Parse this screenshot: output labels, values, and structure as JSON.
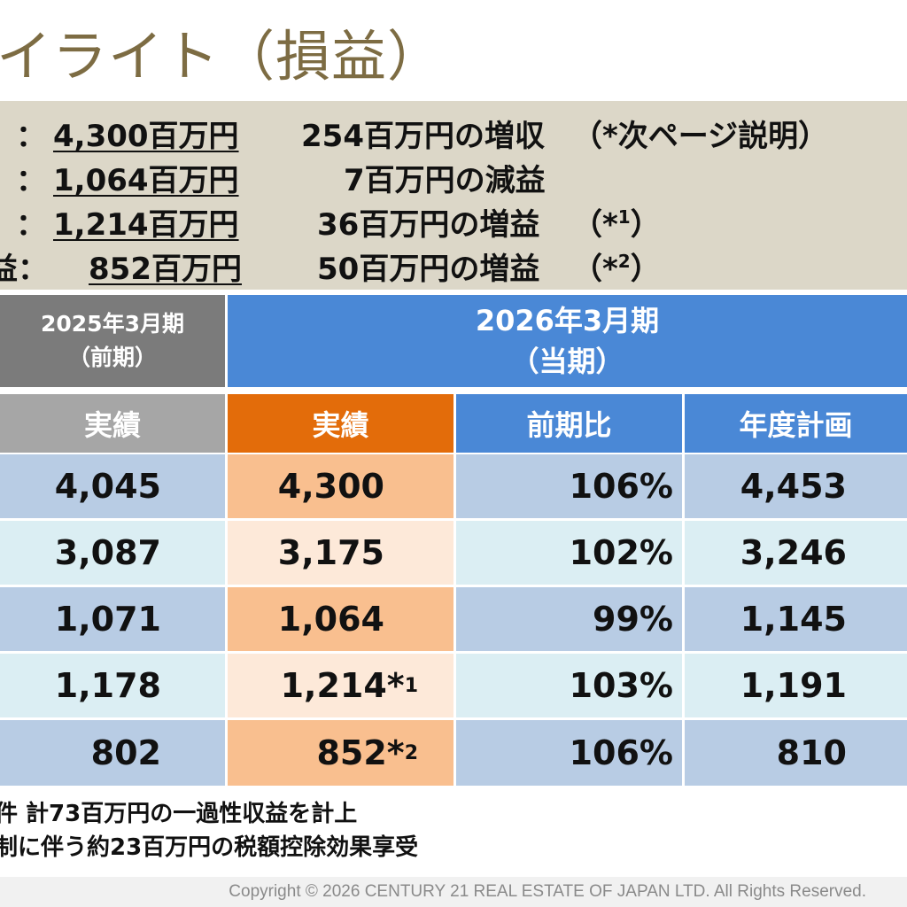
{
  "title": "イライト（損益）",
  "summary": [
    {
      "label": "：",
      "value": "4,300百万円",
      "change": "254百万円の増収",
      "note": "（*次ページ説明）",
      "sup": ""
    },
    {
      "label": "：",
      "value": "1,064百万円",
      "change": "7百万円の減益",
      "note": "",
      "sup": ""
    },
    {
      "label": "：",
      "value": "1,214百万円",
      "change": "36百万円の増益",
      "note": "（*",
      "sup": "1",
      "note_end": "）"
    },
    {
      "label": "益：",
      "value": "852百万円",
      "change": "50百万円の増益",
      "note": "（*",
      "sup": "2",
      "note_end": "）"
    }
  ],
  "table": {
    "prev_header_line1": "2025年3月期",
    "prev_header_line2": "（前期）",
    "cur_header_line1": "2026年3月期",
    "cur_header_line2": "（当期）",
    "subheaders": [
      "実績",
      "実績",
      "前期比",
      "年度計画"
    ],
    "rows": [
      {
        "prev": "4,045",
        "cur": "4,300",
        "cur_sup": "",
        "ratio": "106%",
        "plan": "4,453"
      },
      {
        "prev": "3,087",
        "cur": "3,175",
        "cur_sup": "",
        "ratio": "102%",
        "plan": "3,246"
      },
      {
        "prev": "1,071",
        "cur": "1,064",
        "cur_sup": "",
        "ratio": "99%",
        "plan": "1,145"
      },
      {
        "prev": "1,178",
        "cur": "1,214*",
        "cur_sup": "1",
        "ratio": "103%",
        "plan": "1,191"
      },
      {
        "prev": "802",
        "cur": "852*",
        "cur_sup": "2",
        "ratio": "106%",
        "plan": "810"
      }
    ]
  },
  "footnotes": [
    "件 計73百万円の一過性収益を計上",
    "制に伴う約23百万円の税額控除効果享受"
  ],
  "copyright": "Copyright © 2026 CENTURY 21 REAL ESTATE OF JAPAN LTD. All Rights Reserved.",
  "colors": {
    "title": "#7d6c43",
    "summary_bg": "#dcd7c8",
    "prev_header": "#7b7b7b",
    "cur_header": "#4a88d6",
    "actual_header": "#e36c0a",
    "row_dark": "#b8cce4",
    "row_light": "#dbeef3",
    "actual_dark": "#f9bf8f",
    "actual_light": "#fde9d9"
  }
}
